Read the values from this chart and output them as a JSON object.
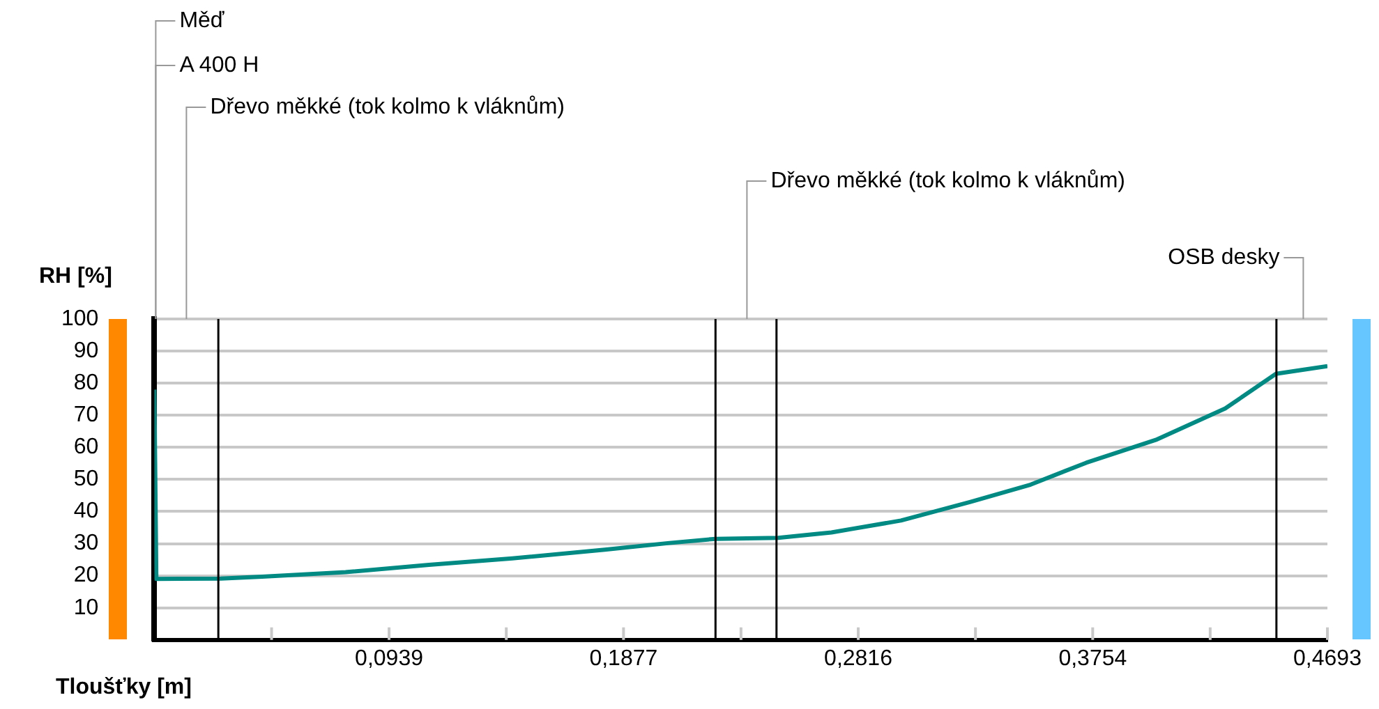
{
  "chart_data": {
    "type": "line",
    "xlabel": "Tloušťky [m]",
    "ylabel": "RH [%]",
    "xlim": [
      0,
      0.4693
    ],
    "ylim": [
      0,
      100
    ],
    "xticks": [
      {
        "value": 0.0469,
        "label": null
      },
      {
        "value": 0.0939,
        "label": "0,0939"
      },
      {
        "value": 0.1408,
        "label": null
      },
      {
        "value": 0.1877,
        "label": "0,1877"
      },
      {
        "value": 0.2347,
        "label": null
      },
      {
        "value": 0.2816,
        "label": "0,2816"
      },
      {
        "value": 0.3285,
        "label": null
      },
      {
        "value": 0.3754,
        "label": "0,3754"
      },
      {
        "value": 0.4224,
        "label": null
      },
      {
        "value": 0.4693,
        "label": "0,4693"
      }
    ],
    "yticks": [
      10,
      20,
      30,
      40,
      50,
      60,
      70,
      80,
      90,
      100
    ],
    "grid": "y",
    "legend": false,
    "marker": "none",
    "line_style": "solid",
    "series": [
      {
        "color": "#008a84",
        "x": [
          0,
          0.0008,
          0.0265,
          0.0431,
          0.0765,
          0.1099,
          0.1432,
          0.1802,
          0.2061,
          0.2246,
          0.2496,
          0.2709,
          0.2987,
          0.3265,
          0.3506,
          0.3728,
          0.4006,
          0.4284,
          0.4487,
          0.458,
          0.4693
        ],
        "values": [
          78,
          19,
          19.1,
          19.7,
          21.1,
          23.4,
          25.4,
          28.1,
          30.2,
          31.5,
          31.8,
          33.5,
          37.2,
          43,
          48.4,
          55.2,
          62.3,
          72.1,
          82.9,
          84,
          85.3
        ]
      }
    ],
    "ref_lines": [
      {
        "axis": "x",
        "value": 0.0256,
        "color": "#000000"
      },
      {
        "axis": "x",
        "value": 0.2245,
        "color": "#000000"
      },
      {
        "axis": "x",
        "value": 0.2489,
        "color": "#000000"
      },
      {
        "axis": "x",
        "value": 0.4489,
        "color": "#000000"
      }
    ],
    "annotations": [
      "Měď",
      "A 400 H",
      "Dřevo měkké (tok kolmo k vláknům)",
      "Dřevo měkké (tok kolmo k vláknům)",
      "OSB desky"
    ]
  }
}
